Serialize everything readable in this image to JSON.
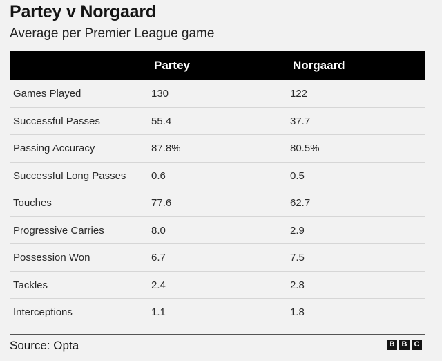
{
  "header": {
    "title": "Partey v Norgaard",
    "subtitle": "Average per Premier League game"
  },
  "chart_data": {
    "type": "table",
    "title": "Partey v Norgaard",
    "subtitle": "Average per Premier League game",
    "columns": [
      "",
      "Partey",
      "Norgaard"
    ],
    "rows": [
      {
        "label": "Games Played",
        "a": "130",
        "b": "122"
      },
      {
        "label": "Successful Passes",
        "a": "55.4",
        "b": "37.7"
      },
      {
        "label": "Passing Accuracy",
        "a": "87.8%",
        "b": "80.5%"
      },
      {
        "label": "Successful Long Passes",
        "a": "0.6",
        "b": "0.5"
      },
      {
        "label": "Touches",
        "a": "77.6",
        "b": "62.7"
      },
      {
        "label": "Progressive Carries",
        "a": "8.0",
        "b": "2.9"
      },
      {
        "label": "Possession Won",
        "a": "6.7",
        "b": "7.5"
      },
      {
        "label": "Tackles",
        "a": "2.4",
        "b": "2.8"
      },
      {
        "label": "Interceptions",
        "a": "1.1",
        "b": "1.8"
      }
    ]
  },
  "footer": {
    "source": "Source: Opta",
    "logo_letters": [
      "B",
      "B",
      "C"
    ]
  },
  "colors": {
    "background": "#f2f2f2",
    "header_bg": "#000000",
    "header_text": "#ffffff",
    "row_divider": "#d6d6d6"
  }
}
